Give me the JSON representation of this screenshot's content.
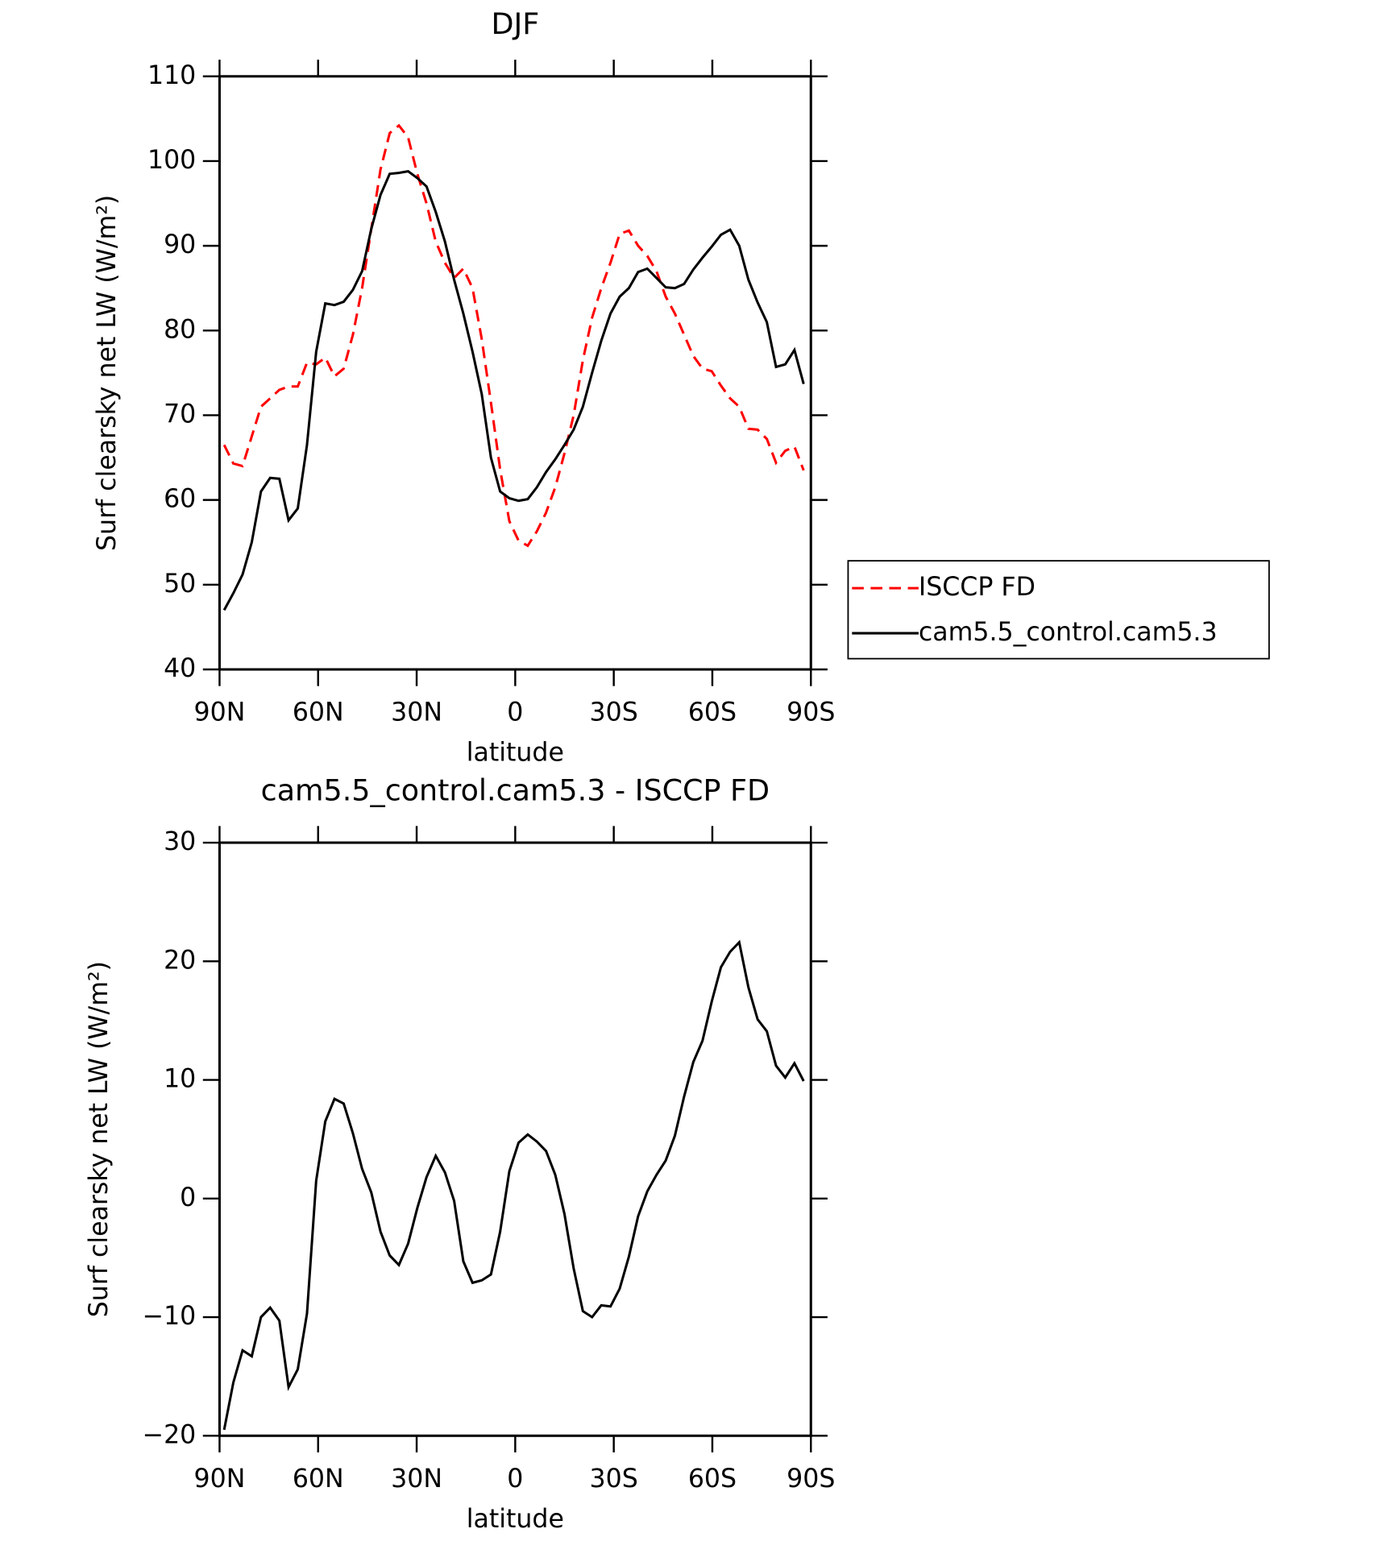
{
  "chart_data": [
    {
      "type": "line",
      "title": "DJF",
      "xlabel": "latitude",
      "ylabel": "Surf clearsky net LW (W/m²)",
      "x": [
        88.6,
        85.8,
        83,
        80.2,
        77.4,
        74.6,
        71.8,
        69,
        66.2,
        63.4,
        60.6,
        57.8,
        55,
        52.2,
        49.4,
        46.6,
        43.8,
        41,
        38.2,
        35.4,
        32.6,
        29.8,
        27,
        24.2,
        21.4,
        18.6,
        15.8,
        13,
        10.2,
        7.4,
        4.6,
        1.8,
        -1,
        -3.8,
        -6.6,
        -9.4,
        -12.2,
        -15,
        -17.8,
        -20.6,
        -23.4,
        -26.2,
        -29,
        -31.8,
        -34.6,
        -37.4,
        -40.2,
        -43,
        -45.8,
        -48.6,
        -51.4,
        -54.2,
        -57,
        -59.8,
        -62.6,
        -65.4,
        -68.2,
        -71,
        -73.8,
        -76.6,
        -79.4,
        -82.2,
        -85,
        -87.8
      ],
      "series": [
        {
          "name": "ISCCP FD",
          "color": "#ff0000",
          "dash": true,
          "values": [
            66.5,
            64.3,
            64,
            67.5,
            71,
            72,
            73,
            73.4,
            73.4,
            76.2,
            76,
            76.8,
            74.6,
            75.5,
            79.5,
            85,
            92,
            99,
            103.3,
            104.2,
            102.8,
            98.5,
            95,
            90.5,
            88,
            86.2,
            87.3,
            85,
            79,
            71.5,
            63.6,
            57.5,
            55.2,
            54.6,
            56.3,
            58.5,
            61.5,
            65.5,
            70,
            76.5,
            81.5,
            85,
            88,
            91.4,
            91.8,
            90,
            88.8,
            87,
            84,
            82,
            79.5,
            77,
            75.5,
            75.2,
            73.5,
            72,
            71,
            68.4,
            68.3,
            67.2,
            64.4,
            65.8,
            66.3,
            63.5
          ]
        },
        {
          "name": "cam5.5_control.cam5.3",
          "color": "#000000",
          "dash": false,
          "values": [
            47,
            49,
            51.2,
            55,
            61,
            62.6,
            62.5,
            57.6,
            59,
            66.5,
            77.5,
            83.2,
            83,
            83.4,
            84.8,
            87,
            92,
            96,
            98.5,
            98.6,
            98.8,
            98,
            97,
            94,
            90.5,
            86,
            82,
            77.5,
            72.5,
            65,
            61,
            60.2,
            59.9,
            60.1,
            61.5,
            63.3,
            64.8,
            66.5,
            68.3,
            71,
            75,
            78.8,
            82,
            84,
            85,
            86.9,
            87.3,
            86.2,
            85.1,
            85,
            85.5,
            87.2,
            88.6,
            89.9,
            91.3,
            91.9,
            90,
            86,
            83.3,
            81,
            75.7,
            76,
            77.7,
            73.7
          ]
        }
      ],
      "xlim": [
        90,
        -90
      ],
      "xticks": [
        {
          "value": 90,
          "label": "90N"
        },
        {
          "value": 60,
          "label": "60N"
        },
        {
          "value": 30,
          "label": "30N"
        },
        0,
        {
          "value": -30,
          "label": "30S"
        },
        {
          "value": -60,
          "label": "60S"
        },
        {
          "value": -90,
          "label": "90S"
        }
      ],
      "ylim": [
        40,
        110
      ],
      "yticks": [
        40,
        50,
        60,
        70,
        80,
        90,
        100,
        110
      ],
      "legend": "right"
    },
    {
      "type": "line",
      "title": "cam5.5_control.cam5.3 - ISCCP FD",
      "xlabel": "latitude",
      "ylabel": "Surf clearsky net LW (W/m²)",
      "x": [
        88.6,
        85.8,
        83,
        80.2,
        77.4,
        74.6,
        71.8,
        69,
        66.2,
        63.4,
        60.6,
        57.8,
        55,
        52.2,
        49.4,
        46.6,
        43.8,
        41,
        38.2,
        35.4,
        32.6,
        29.8,
        27,
        24.2,
        21.4,
        18.6,
        15.8,
        13,
        10.2,
        7.4,
        4.6,
        1.8,
        -1,
        -3.8,
        -6.6,
        -9.4,
        -12.2,
        -15,
        -17.8,
        -20.6,
        -23.4,
        -26.2,
        -29,
        -31.8,
        -34.6,
        -37.4,
        -40.2,
        -43,
        -45.8,
        -48.6,
        -51.4,
        -54.2,
        -57,
        -59.8,
        -62.6,
        -65.4,
        -68.2,
        -71,
        -73.8,
        -76.6,
        -79.4,
        -82.2,
        -85,
        -87.8
      ],
      "series": [
        {
          "color": "#000000",
          "dash": false,
          "values": [
            -19.5,
            -15.5,
            -12.8,
            -13.3,
            -10,
            -9.2,
            -10.3,
            -15.9,
            -14.4,
            -9.7,
            1.5,
            6.5,
            8.4,
            8,
            5.5,
            2.5,
            0.5,
            -2.8,
            -4.8,
            -5.6,
            -3.8,
            -0.8,
            1.8,
            3.6,
            2.2,
            -0.2,
            -5.3,
            -7.1,
            -6.9,
            -6.4,
            -2.8,
            2.3,
            4.7,
            5.4,
            4.8,
            4,
            2,
            -1.3,
            -5.9,
            -9.5,
            -10,
            -9,
            -9.1,
            -7.6,
            -4.9,
            -1.5,
            0.6,
            2,
            3.2,
            5.3,
            8.6,
            11.5,
            13.3,
            16.6,
            19.5,
            20.8,
            21.6,
            17.8,
            15.1,
            14.1,
            11.2,
            10.2,
            11.4,
            9.9
          ]
        }
      ],
      "xlim": [
        90,
        -90
      ],
      "xticks": [
        {
          "value": 90,
          "label": "90N"
        },
        {
          "value": 60,
          "label": "60N"
        },
        {
          "value": 30,
          "label": "30N"
        },
        0,
        {
          "value": -30,
          "label": "30S"
        },
        {
          "value": -60,
          "label": "60S"
        },
        {
          "value": -90,
          "label": "90S"
        }
      ],
      "ylim": [
        -20,
        30
      ],
      "yticks": [
        {
          "value": -20,
          "label": "−20"
        },
        {
          "value": -10,
          "label": "−10"
        },
        0,
        10,
        20,
        30
      ]
    }
  ]
}
